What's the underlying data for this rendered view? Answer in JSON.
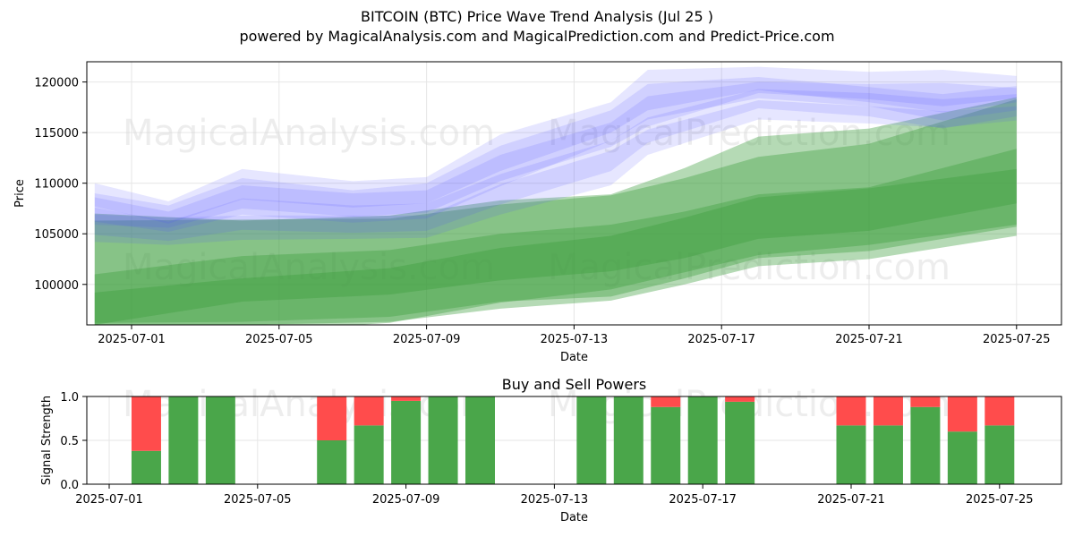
{
  "title": "BITCOIN (BTC) Price Wave Trend Analysis (Jul 25 )",
  "subtitle": "powered by MagicalAnalysis.com and MagicalPrediction.com and Predict-Price.com",
  "watermarks": [
    "MagicalAnalysis.com",
    "MagicalPrediction.com"
  ],
  "colors": {
    "price_band": "#4d4dff",
    "forecast_band": "#3c9d3c",
    "buy": "#4aa64a",
    "sell": "#ff4c4c",
    "grid": "#e6e6e6"
  },
  "chart_data": [
    {
      "type": "area",
      "xlabel": "Date",
      "ylabel": "Price",
      "x_ticks": [
        "2025-07-01",
        "2025-07-05",
        "2025-07-09",
        "2025-07-13",
        "2025-07-17",
        "2025-07-21",
        "2025-07-25"
      ],
      "y_ticks": [
        100000,
        105000,
        110000,
        115000,
        120000
      ],
      "ylim": [
        96000,
        122000
      ],
      "grid": true,
      "price_wave_bands": [
        {
          "x": [
            "2025-06-30",
            "2025-07-02",
            "2025-07-04",
            "2025-07-07",
            "2025-07-09",
            "2025-07-11",
            "2025-07-14",
            "2025-07-15",
            "2025-07-18",
            "2025-07-21",
            "2025-07-23",
            "2025-07-25"
          ],
          "upper": [
            109000,
            107800,
            110500,
            109300,
            110000,
            113700,
            117200,
            119800,
            120500,
            119500,
            118800,
            119600
          ],
          "lower": [
            106200,
            105200,
            106900,
            106100,
            106500,
            109700,
            114200,
            116300,
            118400,
            117600,
            116200,
            117200
          ]
        },
        {
          "x": [
            "2025-06-30",
            "2025-07-02",
            "2025-07-04",
            "2025-07-07",
            "2025-07-09",
            "2025-07-11",
            "2025-07-14",
            "2025-07-15",
            "2025-07-18",
            "2025-07-21",
            "2025-07-23",
            "2025-07-25"
          ],
          "upper": [
            108600,
            107200,
            109800,
            109000,
            109300,
            112800,
            116000,
            118600,
            120000,
            119800,
            119900,
            119400
          ],
          "lower": [
            105900,
            105600,
            107500,
            106700,
            107100,
            110200,
            113600,
            115600,
            118900,
            118300,
            117600,
            118400
          ]
        },
        {
          "x": [
            "2025-06-30",
            "2025-07-02",
            "2025-07-04",
            "2025-07-07",
            "2025-07-09",
            "2025-07-11",
            "2025-07-14",
            "2025-07-15",
            "2025-07-18",
            "2025-07-21",
            "2025-07-23",
            "2025-07-25"
          ],
          "upper": [
            110000,
            108200,
            111400,
            110200,
            110600,
            114800,
            118000,
            121200,
            121500,
            121000,
            121200,
            120600
          ],
          "lower": [
            107700,
            106000,
            108400,
            107600,
            108000,
            111200,
            115000,
            117200,
            119200,
            118000,
            117000,
            118000
          ]
        },
        {
          "x": [
            "2025-06-30",
            "2025-07-02",
            "2025-07-04",
            "2025-07-07",
            "2025-07-09",
            "2025-07-11",
            "2025-07-14",
            "2025-07-15",
            "2025-07-18",
            "2025-07-21",
            "2025-07-23",
            "2025-07-25"
          ],
          "upper": [
            107600,
            106200,
            108500,
            107800,
            108000,
            110900,
            114200,
            116500,
            119300,
            118900,
            118300,
            118800
          ],
          "lower": [
            104900,
            104300,
            105400,
            105100,
            105300,
            107900,
            111200,
            114000,
            117400,
            116600,
            115400,
            116600
          ]
        },
        {
          "x": [
            "2025-06-30",
            "2025-07-02",
            "2025-07-04",
            "2025-07-07",
            "2025-07-09",
            "2025-07-11",
            "2025-07-14",
            "2025-07-15",
            "2025-07-18",
            "2025-07-21",
            "2025-07-23",
            "2025-07-25"
          ],
          "upper": [
            106900,
            106600,
            106800,
            106800,
            106800,
            109900,
            113200,
            115300,
            118200,
            117600,
            117100,
            117600
          ],
          "lower": [
            104200,
            103900,
            104400,
            104500,
            104600,
            106900,
            109800,
            112800,
            116300,
            115900,
            115500,
            116200
          ]
        }
      ],
      "forecast_bands": [
        {
          "x": [
            "2025-06-30",
            "2025-07-04",
            "2025-07-08",
            "2025-07-11",
            "2025-07-14",
            "2025-07-16",
            "2025-07-18",
            "2025-07-21",
            "2025-07-25"
          ],
          "upper": [
            107000,
            106300,
            106800,
            108300,
            108900,
            111500,
            114600,
            115400,
            118500
          ],
          "lower": [
            96200,
            96300,
            96800,
            98300,
            98800,
            100600,
            102600,
            103300,
            105700
          ]
        },
        {
          "x": [
            "2025-06-30",
            "2025-07-04",
            "2025-07-08",
            "2025-07-11",
            "2025-07-14",
            "2025-07-16",
            "2025-07-18",
            "2025-07-21",
            "2025-07-25"
          ],
          "upper": [
            101000,
            102800,
            103400,
            105000,
            105900,
            107200,
            108900,
            109600,
            113400
          ],
          "lower": [
            96000,
            98300,
            99000,
            100400,
            101300,
            102600,
            104500,
            105300,
            108000
          ]
        },
        {
          "x": [
            "2025-06-30",
            "2025-07-04",
            "2025-07-08",
            "2025-07-11",
            "2025-07-14",
            "2025-07-16",
            "2025-07-18",
            "2025-07-21",
            "2025-07-25"
          ],
          "upper": [
            106300,
            106400,
            106500,
            107900,
            108800,
            110500,
            112600,
            113900,
            118300
          ],
          "lower": [
            95000,
            96000,
            96300,
            97600,
            98400,
            100000,
            101800,
            102500,
            104800
          ]
        },
        {
          "x": [
            "2025-06-30",
            "2025-07-04",
            "2025-07-08",
            "2025-07-11",
            "2025-07-14",
            "2025-07-16",
            "2025-07-18",
            "2025-07-21",
            "2025-07-25"
          ],
          "upper": [
            99200,
            100600,
            101600,
            103600,
            104800,
            106600,
            108600,
            109500,
            111400
          ],
          "lower": [
            94000,
            95300,
            96200,
            98200,
            99500,
            101200,
            102900,
            103900,
            105900
          ]
        }
      ]
    },
    {
      "type": "bar",
      "title": "Buy and Sell Powers",
      "xlabel": "Date",
      "ylabel": "Signal Strength",
      "x_ticks": [
        "2025-07-01",
        "2025-07-05",
        "2025-07-09",
        "2025-07-13",
        "2025-07-17",
        "2025-07-21",
        "2025-07-25"
      ],
      "y_ticks": [
        0.0,
        0.5,
        1.0
      ],
      "ylim": [
        0,
        1
      ],
      "grid": true,
      "dates": [
        "2025-07-02",
        "2025-07-03",
        "2025-07-04",
        "2025-07-07",
        "2025-07-08",
        "2025-07-09",
        "2025-07-10",
        "2025-07-11",
        "2025-07-14",
        "2025-07-15",
        "2025-07-16",
        "2025-07-17",
        "2025-07-18",
        "2025-07-21",
        "2025-07-22",
        "2025-07-23",
        "2025-07-24",
        "2025-07-25"
      ],
      "series": [
        {
          "name": "Buy",
          "values": [
            0.38,
            1.0,
            1.0,
            0.5,
            0.67,
            0.95,
            1.0,
            1.0,
            1.0,
            1.0,
            0.88,
            1.0,
            0.94,
            0.67,
            0.67,
            0.88,
            0.6,
            0.67
          ]
        },
        {
          "name": "Sell",
          "values": [
            0.62,
            0.0,
            0.0,
            0.5,
            0.33,
            0.05,
            0.0,
            0.0,
            0.0,
            0.0,
            0.12,
            0.0,
            0.06,
            0.33,
            0.33,
            0.12,
            0.4,
            0.33
          ]
        }
      ]
    }
  ]
}
